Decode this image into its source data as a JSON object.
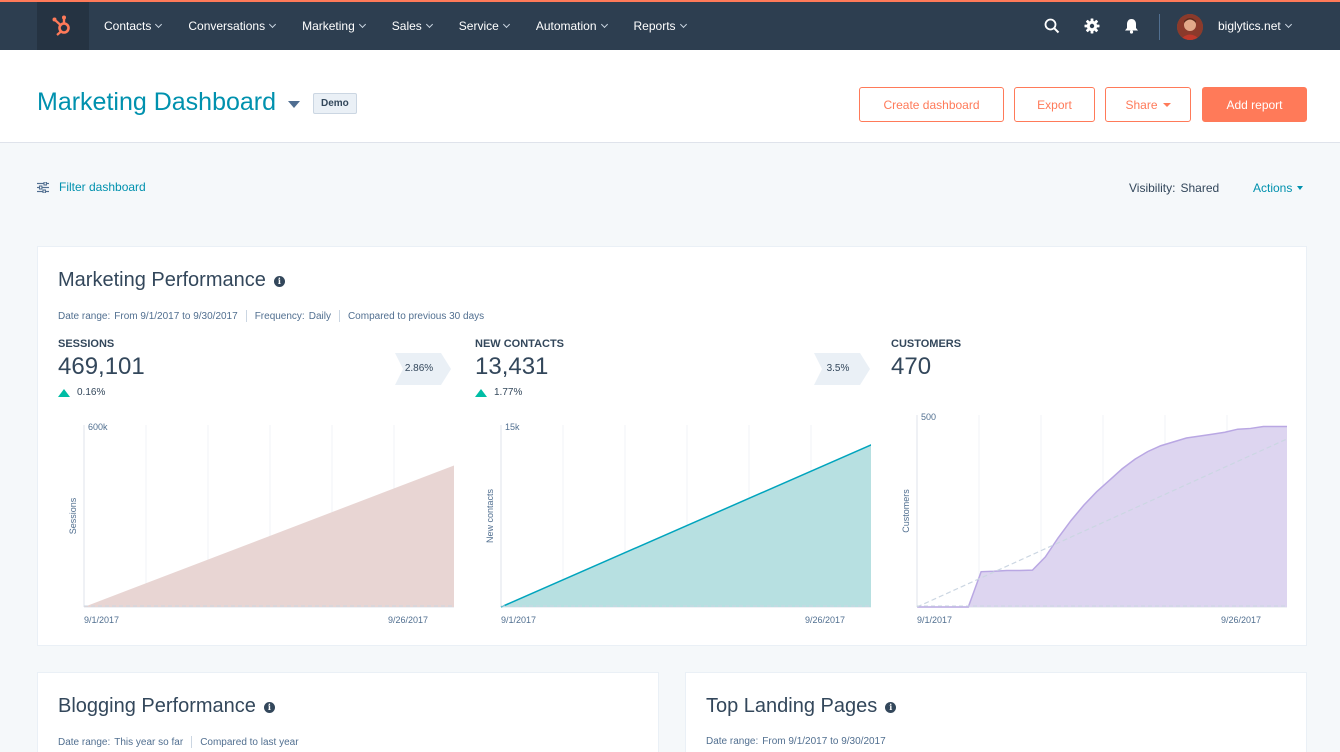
{
  "nav": {
    "items": [
      {
        "label": "Contacts"
      },
      {
        "label": "Conversations"
      },
      {
        "label": "Marketing"
      },
      {
        "label": "Sales"
      },
      {
        "label": "Service"
      },
      {
        "label": "Automation"
      },
      {
        "label": "Reports"
      }
    ],
    "account": "biglytics.net"
  },
  "header": {
    "title": "Marketing Dashboard",
    "badge": "Demo",
    "buttons": {
      "create": "Create dashboard",
      "export": "Export",
      "share": "Share",
      "add_report": "Add report"
    }
  },
  "toolbar": {
    "filter": "Filter dashboard",
    "visibility_label": "Visibility:",
    "visibility_value": "Shared",
    "actions": "Actions"
  },
  "marketing": {
    "title": "Marketing Performance",
    "meta": {
      "date_label": "Date range:",
      "date_value": "From 9/1/2017 to 9/30/2017",
      "freq_label": "Frequency:",
      "freq_value": "Daily",
      "compared": "Compared to previous 30 days"
    },
    "kpis": [
      {
        "label": "SESSIONS",
        "value": "469,101",
        "change": "0.16%"
      },
      {
        "label": "NEW CONTACTS",
        "value": "13,431",
        "change": "1.77%"
      },
      {
        "label": "CUSTOMERS",
        "value": "470"
      }
    ],
    "conversions": [
      "2.86%",
      "3.5%"
    ]
  },
  "chart_data": [
    {
      "type": "area",
      "ylabel": "Sessions",
      "ylim": [
        0,
        600000
      ],
      "y_tick_label": "600k",
      "x_tick_labels": [
        "9/1/2017",
        "9/26/2017"
      ],
      "x": [
        "9/1/2017",
        "9/30/2017"
      ],
      "series": [
        {
          "values": [
            0,
            469101
          ]
        }
      ],
      "color": "#e8d5d3"
    },
    {
      "type": "area",
      "ylabel": "New contacts",
      "ylim": [
        0,
        15000
      ],
      "y_tick_label": "15k",
      "x_tick_labels": [
        "9/1/2017",
        "9/26/2017"
      ],
      "x": [
        "9/1/2017",
        "9/30/2017"
      ],
      "series": [
        {
          "values": [
            0,
            13431
          ]
        }
      ],
      "color": "#b7e0e1",
      "line_color": "#00a4bd"
    },
    {
      "type": "area",
      "ylabel": "Customers",
      "ylim": [
        0,
        500
      ],
      "y_tick_label": "500",
      "x_tick_labels": [
        "9/1/2017",
        "9/26/2017"
      ],
      "x": [
        "9/1",
        "9/2",
        "9/3",
        "9/4",
        "9/5",
        "9/6",
        "9/7",
        "9/8",
        "9/9",
        "9/10",
        "9/11",
        "9/12",
        "9/13",
        "9/14",
        "9/15",
        "9/16",
        "9/17",
        "9/18",
        "9/19",
        "9/20",
        "9/21",
        "9/22",
        "9/23",
        "9/24",
        "9/25",
        "9/26",
        "9/27",
        "9/28",
        "9/29",
        "9/30"
      ],
      "series": [
        {
          "values": [
            0,
            0,
            0,
            0,
            0,
            92,
            93,
            95,
            95,
            96,
            130,
            180,
            225,
            265,
            300,
            330,
            360,
            385,
            405,
            420,
            430,
            440,
            445,
            450,
            455,
            463,
            465,
            470,
            470,
            470
          ]
        }
      ],
      "trend": [
        0,
        440
      ],
      "color": "#ddd5f0",
      "line_color": "#b9a7e3"
    }
  ],
  "blogging": {
    "title": "Blogging Performance",
    "meta": {
      "date_label": "Date range:",
      "date_value": "This year so far",
      "compared": "Compared to last year"
    }
  },
  "landing": {
    "title": "Top Landing Pages",
    "meta": {
      "date_label": "Date range:",
      "date_value": "From 9/1/2017 to 9/30/2017"
    }
  }
}
